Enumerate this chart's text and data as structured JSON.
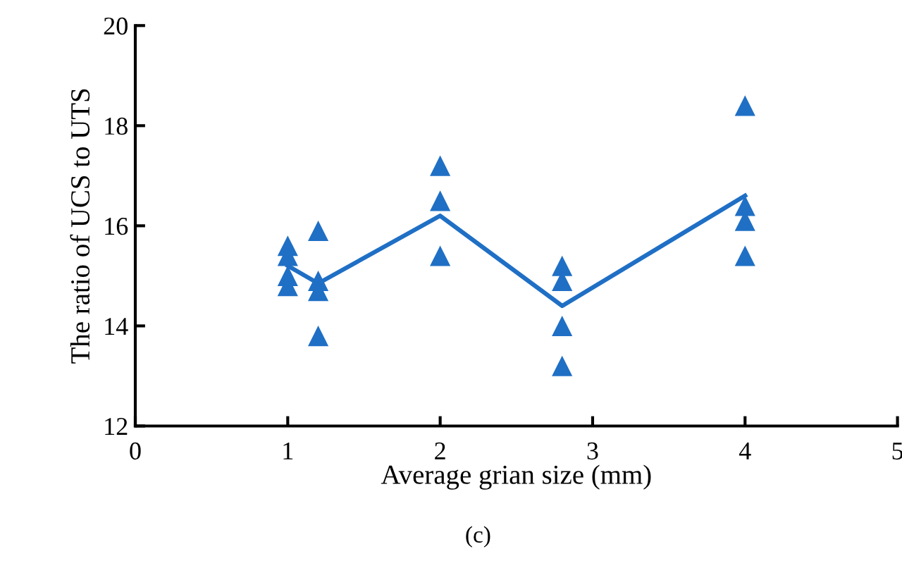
{
  "chart_data": {
    "type": "scatter",
    "xlabel": "Average grian size (mm)",
    "ylabel": "The ratio of UCS to UTS",
    "xlim": [
      0,
      5
    ],
    "xticks": [
      0,
      1,
      2,
      3,
      4,
      5
    ],
    "ylim": [
      12,
      20
    ],
    "yticks": [
      12,
      14,
      16,
      18,
      20
    ],
    "grid": false,
    "legend": false,
    "annotations": [
      "(c)"
    ],
    "series": [
      {
        "color": "#1f6fc5",
        "marker": "triangle",
        "x": [
          1,
          1,
          1,
          1,
          1.2,
          1.2,
          1.2,
          1.2,
          2,
          2,
          2,
          2.8,
          2.8,
          2.8,
          2.8,
          4,
          4,
          4,
          4
        ],
        "values": [
          15.6,
          15.4,
          15.0,
          14.8,
          15.9,
          14.9,
          14.7,
          13.8,
          17.2,
          16.5,
          15.4,
          15.2,
          14.9,
          14.0,
          13.2,
          18.4,
          16.4,
          16.1,
          15.4
        ]
      },
      {
        "type": "line",
        "color": "#1f6fc5",
        "marker": "none",
        "line_style": "solid",
        "x": [
          1,
          1.2,
          2,
          2.8,
          4
        ],
        "values": [
          15.2,
          14.85,
          16.2,
          14.4,
          16.6
        ]
      }
    ]
  }
}
